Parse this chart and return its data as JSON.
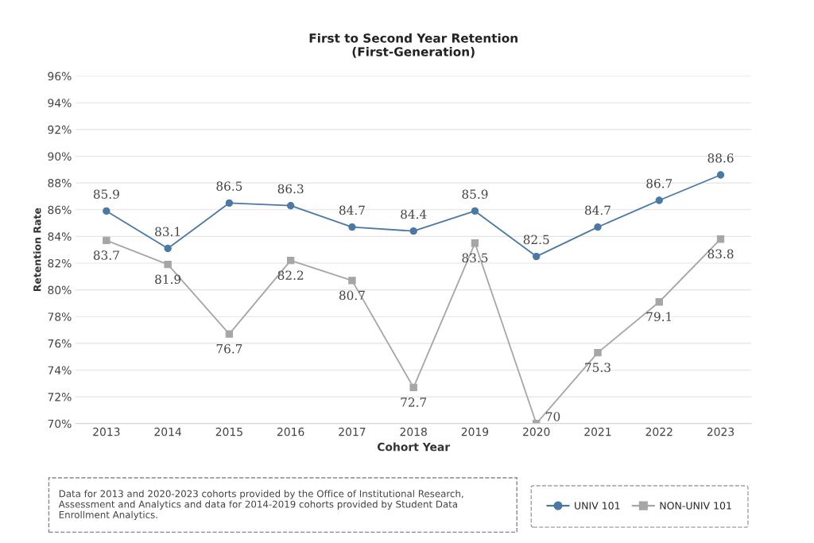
{
  "chart_data": {
    "type": "line",
    "title": "First to Second Year Retention\n(First-Generation)",
    "xlabel": "Cohort Year",
    "ylabel": "Retention Rate",
    "categories": [
      "2013",
      "2014",
      "2015",
      "2016",
      "2017",
      "2018",
      "2019",
      "2020",
      "2021",
      "2022",
      "2023"
    ],
    "series": [
      {
        "name": "UNIV 101",
        "color": "#4a79a5",
        "marker": "circle",
        "values": [
          85.9,
          83.1,
          86.5,
          86.3,
          84.7,
          84.4,
          85.9,
          82.5,
          84.7,
          86.7,
          88.6
        ]
      },
      {
        "name": "NON-UNIV 101",
        "color": "#a6a6a6",
        "marker": "square",
        "values": [
          83.7,
          81.9,
          76.7,
          82.2,
          80.7,
          72.7,
          83.5,
          70,
          75.3,
          79.1,
          83.8
        ]
      }
    ],
    "ylim": [
      70,
      96
    ],
    "yticks": [
      {
        "value": 70,
        "label": "70%"
      },
      {
        "value": 72,
        "label": "72%"
      },
      {
        "value": 74,
        "label": "74%"
      },
      {
        "value": 76,
        "label": "76%"
      },
      {
        "value": 78,
        "label": "78%"
      },
      {
        "value": 80,
        "label": "80%"
      },
      {
        "value": 82,
        "label": "82%"
      },
      {
        "value": 84,
        "label": "84%"
      },
      {
        "value": 86,
        "label": "86%"
      },
      {
        "value": 88,
        "label": "88%"
      },
      {
        "value": 90,
        "label": "90%"
      },
      {
        "value": 92,
        "label": "92%"
      },
      {
        "value": 94,
        "label": "94%"
      },
      {
        "value": 96,
        "label": "96%"
      }
    ],
    "grid": "y",
    "legend": "bottom right",
    "data_labels": true,
    "line_style": "solid",
    "annotations": [
      "Data for 2013 and 2020-2023 cohorts provided by the Office of Institutional Research, Assessment and Analytics and data for 2014-2019 cohorts provided by Student Data Enrollment Analytics."
    ]
  }
}
